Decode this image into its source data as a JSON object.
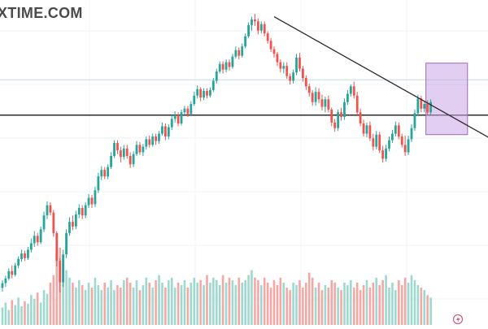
{
  "watermark": "XTIME.COM",
  "colors": {
    "up": "#26a69a",
    "down": "#ef5350",
    "up_volume": "#9ed9cf",
    "down_volume": "#f4a8a6",
    "grid": "#f0f3fa",
    "trendline": "#2a2a2a",
    "support": "#000000",
    "box_fill": "#c9a6e3",
    "box_stroke": "#9c6bb8",
    "faint_level": "#a8d8d4",
    "alert": "#d05a7a"
  },
  "chart_data": {
    "type": "candlestick",
    "title": "",
    "xlabel": "",
    "ylabel": "",
    "ylim": [
      78,
      113
    ],
    "grid": true,
    "candles": [
      [
        82.0,
        82.8,
        81.6,
        82.5
      ],
      [
        82.5,
        83.3,
        82.1,
        83.0
      ],
      [
        83.0,
        84.1,
        82.8,
        83.8
      ],
      [
        83.8,
        84.4,
        83.0,
        83.4
      ],
      [
        83.4,
        84.7,
        83.2,
        84.4
      ],
      [
        84.4,
        85.4,
        84.1,
        85.1
      ],
      [
        85.1,
        86.1,
        84.8,
        85.7
      ],
      [
        85.7,
        86.0,
        84.9,
        85.2
      ],
      [
        85.2,
        86.4,
        85.0,
        86.1
      ],
      [
        86.1,
        87.3,
        85.8,
        86.8
      ],
      [
        86.8,
        88.1,
        86.4,
        87.6
      ],
      [
        87.6,
        87.9,
        86.5,
        86.9
      ],
      [
        86.9,
        88.6,
        86.7,
        88.3
      ],
      [
        88.3,
        90.2,
        88.0,
        89.8
      ],
      [
        89.8,
        91.3,
        89.4,
        90.9
      ],
      [
        90.9,
        91.2,
        89.8,
        90.1
      ],
      [
        90.1,
        90.4,
        87.5,
        87.9
      ],
      [
        87.9,
        88.1,
        84.3,
        84.9
      ],
      [
        84.9,
        85.2,
        81.5,
        82.6
      ],
      [
        82.6,
        86.1,
        82.1,
        85.6
      ],
      [
        85.6,
        88.3,
        85.2,
        87.9
      ],
      [
        87.9,
        89.6,
        87.6,
        89.1
      ],
      [
        89.1,
        89.8,
        88.2,
        88.6
      ],
      [
        88.6,
        90.3,
        88.3,
        89.9
      ],
      [
        89.9,
        91.0,
        89.5,
        90.6
      ],
      [
        90.6,
        90.9,
        89.4,
        89.8
      ],
      [
        89.8,
        91.2,
        89.5,
        90.9
      ],
      [
        90.9,
        92.1,
        90.6,
        91.7
      ],
      [
        91.7,
        92.0,
        90.6,
        91.0
      ],
      [
        91.0,
        92.9,
        90.7,
        92.5
      ],
      [
        92.5,
        94.4,
        92.2,
        94.0
      ],
      [
        94.0,
        95.1,
        93.6,
        94.7
      ],
      [
        94.7,
        95.0,
        93.7,
        94.0
      ],
      [
        94.0,
        95.3,
        93.7,
        95.0
      ],
      [
        95.0,
        96.6,
        94.8,
        96.2
      ],
      [
        96.2,
        97.9,
        96.0,
        97.6
      ],
      [
        97.6,
        97.9,
        96.4,
        96.8
      ],
      [
        96.8,
        97.2,
        95.5,
        96.1
      ],
      [
        96.1,
        97.4,
        95.8,
        97.0
      ],
      [
        97.0,
        97.4,
        95.9,
        96.2
      ],
      [
        96.2,
        96.6,
        94.9,
        95.3
      ],
      [
        95.3,
        96.7,
        95.0,
        96.4
      ],
      [
        96.4,
        97.8,
        96.2,
        97.4
      ],
      [
        97.4,
        97.7,
        96.3,
        96.6
      ],
      [
        96.6,
        97.5,
        96.2,
        97.2
      ],
      [
        97.2,
        98.3,
        96.9,
        98.0
      ],
      [
        98.0,
        98.4,
        97.1,
        97.4
      ],
      [
        97.4,
        98.6,
        97.2,
        98.3
      ],
      [
        98.3,
        98.6,
        97.4,
        97.8
      ],
      [
        97.8,
        98.9,
        97.5,
        98.6
      ],
      [
        98.6,
        99.8,
        98.4,
        99.4
      ],
      [
        99.4,
        99.7,
        97.9,
        98.3
      ],
      [
        98.3,
        99.6,
        98.0,
        99.3
      ],
      [
        99.3,
        100.6,
        99.0,
        100.2
      ],
      [
        100.2,
        101.0,
        99.8,
        100.6
      ],
      [
        100.6,
        100.9,
        99.4,
        99.7
      ],
      [
        99.7,
        101.2,
        99.5,
        100.9
      ],
      [
        100.9,
        101.6,
        100.6,
        101.3
      ],
      [
        101.3,
        101.6,
        100.4,
        100.7
      ],
      [
        100.7,
        102.1,
        100.5,
        101.8
      ],
      [
        101.8,
        103.1,
        101.6,
        102.7
      ],
      [
        102.7,
        103.8,
        102.4,
        103.4
      ],
      [
        103.4,
        103.6,
        102.1,
        102.5
      ],
      [
        102.5,
        103.5,
        102.2,
        103.2
      ],
      [
        103.2,
        103.5,
        102.4,
        102.7
      ],
      [
        102.7,
        103.6,
        102.5,
        103.3
      ],
      [
        103.3,
        104.6,
        103.1,
        104.3
      ],
      [
        104.3,
        105.6,
        104.0,
        105.3
      ],
      [
        105.3,
        106.4,
        105.1,
        106.1
      ],
      [
        106.1,
        106.4,
        105.1,
        105.5
      ],
      [
        105.5,
        106.6,
        105.2,
        106.3
      ],
      [
        106.3,
        106.6,
        105.4,
        105.8
      ],
      [
        105.8,
        107.2,
        105.6,
        106.9
      ],
      [
        106.9,
        108.0,
        106.7,
        107.6
      ],
      [
        107.6,
        107.9,
        106.6,
        107.0
      ],
      [
        107.0,
        108.3,
        106.8,
        108.0
      ],
      [
        108.0,
        109.4,
        107.8,
        109.1
      ],
      [
        109.1,
        110.6,
        108.9,
        110.3
      ],
      [
        110.3,
        111.2,
        109.7,
        110.9
      ],
      [
        110.9,
        111.5,
        110.2,
        110.7
      ],
      [
        110.7,
        111.0,
        109.3,
        109.7
      ],
      [
        109.7,
        110.7,
        109.4,
        110.4
      ],
      [
        110.4,
        110.7,
        109.1,
        109.4
      ],
      [
        109.4,
        109.6,
        108.3,
        108.6
      ],
      [
        108.6,
        108.9,
        107.4,
        107.7
      ],
      [
        107.7,
        108.0,
        106.8,
        107.2
      ],
      [
        107.2,
        107.4,
        105.9,
        106.3
      ],
      [
        106.3,
        106.6,
        105.2,
        105.6
      ],
      [
        105.6,
        106.3,
        105.1,
        105.9
      ],
      [
        105.9,
        106.3,
        104.5,
        104.8
      ],
      [
        104.8,
        105.1,
        103.9,
        104.3
      ],
      [
        104.3,
        105.5,
        104.0,
        105.2
      ],
      [
        105.2,
        107.2,
        104.9,
        106.8
      ],
      [
        106.8,
        107.3,
        105.3,
        105.6
      ],
      [
        105.6,
        105.9,
        104.2,
        104.6
      ],
      [
        104.6,
        104.9,
        103.3,
        103.7
      ],
      [
        103.7,
        104.0,
        102.6,
        103.0
      ],
      [
        103.0,
        103.3,
        101.6,
        102.0
      ],
      [
        102.0,
        103.6,
        101.6,
        103.1
      ],
      [
        103.1,
        103.5,
        101.9,
        102.3
      ],
      [
        102.3,
        102.8,
        101.1,
        101.5
      ],
      [
        101.5,
        102.6,
        100.9,
        102.3
      ],
      [
        102.3,
        102.7,
        100.9,
        101.2
      ],
      [
        101.2,
        101.4,
        99.4,
        99.8
      ],
      [
        99.8,
        100.2,
        98.8,
        99.2
      ],
      [
        99.2,
        101.2,
        98.9,
        100.9
      ],
      [
        100.9,
        101.4,
        100.0,
        100.4
      ],
      [
        100.4,
        102.4,
        100.1,
        102.0
      ],
      [
        102.0,
        103.3,
        101.7,
        102.9
      ],
      [
        102.9,
        103.9,
        102.6,
        103.7
      ],
      [
        103.7,
        104.2,
        102.4,
        102.7
      ],
      [
        102.7,
        103.1,
        100.6,
        100.9
      ],
      [
        100.9,
        101.3,
        99.4,
        99.7
      ],
      [
        99.7,
        100.1,
        98.3,
        98.6
      ],
      [
        98.6,
        99.8,
        98.2,
        99.5
      ],
      [
        99.5,
        99.9,
        97.8,
        98.1
      ],
      [
        98.1,
        98.6,
        96.8,
        97.2
      ],
      [
        97.2,
        98.9,
        96.9,
        98.5
      ],
      [
        98.5,
        98.8,
        96.5,
        96.8
      ],
      [
        96.8,
        97.3,
        95.5,
        95.9
      ],
      [
        95.9,
        97.4,
        95.6,
        97.0
      ],
      [
        97.0,
        98.3,
        96.7,
        97.9
      ],
      [
        97.9,
        99.0,
        97.6,
        98.6
      ],
      [
        98.6,
        99.9,
        98.3,
        99.5
      ],
      [
        99.5,
        99.8,
        98.0,
        98.3
      ],
      [
        98.3,
        98.6,
        97.1,
        97.4
      ],
      [
        97.4,
        98.4,
        96.2,
        96.6
      ],
      [
        96.6,
        98.4,
        96.3,
        98.0
      ],
      [
        98.0,
        99.6,
        97.7,
        99.2
      ],
      [
        99.2,
        101.2,
        98.9,
        100.8
      ],
      [
        100.8,
        102.8,
        100.5,
        102.4
      ],
      [
        102.4,
        102.7,
        100.9,
        101.3
      ],
      [
        101.3,
        102.1,
        100.9,
        101.8
      ],
      [
        101.8,
        102.2,
        100.6,
        100.9
      ],
      [
        100.9,
        102.3,
        100.6,
        102.0
      ]
    ],
    "volume": [
      14,
      18,
      12,
      20,
      16,
      22,
      15,
      19,
      17,
      24,
      21,
      26,
      18,
      28,
      25,
      34,
      40,
      58,
      62,
      50,
      44,
      38,
      34,
      30,
      36,
      32,
      28,
      34,
      30,
      38,
      32,
      28,
      34,
      30,
      36,
      28,
      32,
      30,
      36,
      38,
      34,
      30,
      36,
      28,
      32,
      38,
      34,
      30,
      36,
      40,
      34,
      30,
      36,
      38,
      30,
      34,
      32,
      36,
      30,
      34,
      38,
      34,
      36,
      32,
      40,
      34,
      38,
      36,
      32,
      40,
      34,
      38,
      36,
      32,
      38,
      34,
      36,
      40,
      44,
      38,
      36,
      32,
      38,
      34,
      30,
      36,
      32,
      38,
      34,
      30,
      28,
      34,
      32,
      36,
      30,
      34,
      42,
      38,
      30,
      34,
      28,
      32,
      30,
      36,
      34,
      30,
      28,
      34,
      32,
      36,
      30,
      34,
      28,
      32,
      36,
      30,
      34,
      38,
      32,
      36,
      40,
      30,
      34,
      28,
      36,
      32,
      38,
      34,
      40,
      36,
      32,
      30,
      28,
      24,
      22
    ],
    "trendline": {
      "from": [
        85,
        111.2
      ],
      "to": [
        146,
        98.9
      ]
    },
    "horizontal_lines": [
      {
        "value": 100.6,
        "style": "solid"
      },
      {
        "value": 104.4,
        "style": "faint"
      }
    ],
    "highlight_box": {
      "x_range": [
        133,
        145
      ],
      "y_range": [
        98.5,
        106.2
      ]
    }
  }
}
